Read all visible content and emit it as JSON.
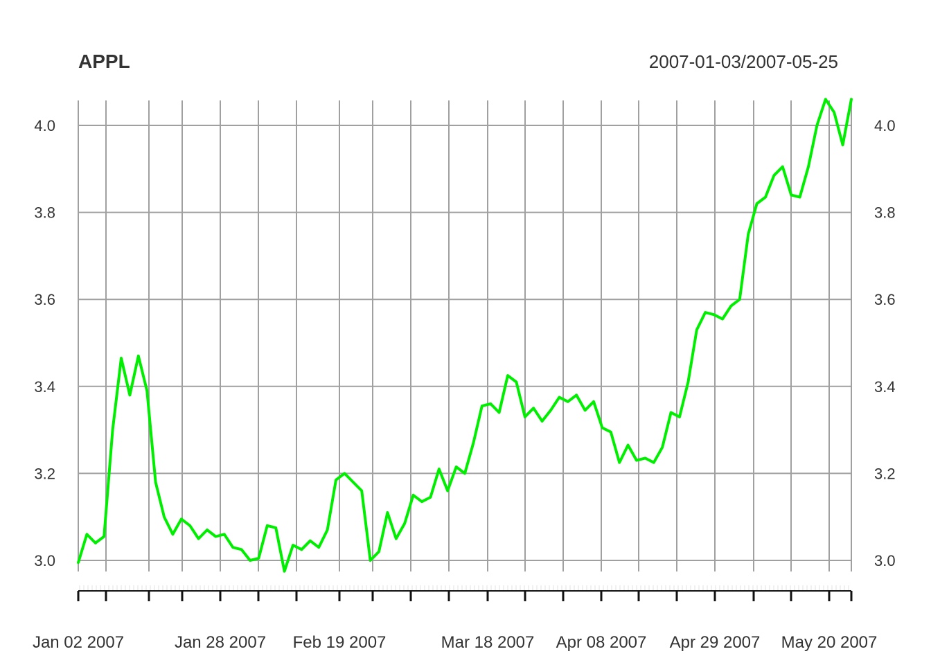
{
  "chart_data": {
    "type": "line",
    "title": "APPL",
    "date_range_label": "2007-01-03/2007-05-25",
    "xlabel": "",
    "ylabel": "",
    "ylim": [
      3.0,
      4.0
    ],
    "y_ticks": [
      "3.0",
      "3.2",
      "3.4",
      "3.6",
      "3.8",
      "4.0"
    ],
    "x_tick_labels": [
      "Jan 02 2007",
      "Jan 28 2007",
      "Feb 19 2007",
      "Mar 18 2007",
      "Apr 08 2007",
      "Apr 29 2007",
      "May 20 2007"
    ],
    "grid": true,
    "line_color": "#00ee00",
    "grid_color": "#a0a0a0",
    "series": [
      {
        "values": [
          2.995,
          3.06,
          3.04,
          3.055,
          3.3,
          3.465,
          3.38,
          3.47,
          3.39,
          3.18,
          3.1,
          3.06,
          3.095,
          3.08,
          3.05,
          3.07,
          3.055,
          3.06,
          3.03,
          3.025,
          3.0,
          3.005,
          3.08,
          3.075,
          2.975,
          3.035,
          3.025,
          3.045,
          3.03,
          3.07,
          3.185,
          3.2,
          3.18,
          3.16,
          3.0,
          3.02,
          3.11,
          3.05,
          3.085,
          3.15,
          3.135,
          3.145,
          3.21,
          3.16,
          3.215,
          3.2,
          3.27,
          3.355,
          3.36,
          3.34,
          3.425,
          3.41,
          3.33,
          3.35,
          3.32,
          3.345,
          3.375,
          3.365,
          3.38,
          3.345,
          3.365,
          3.305,
          3.295,
          3.225,
          3.265,
          3.23,
          3.235,
          3.225,
          3.26,
          3.34,
          3.33,
          3.41,
          3.53,
          3.57,
          3.565,
          3.555,
          3.585,
          3.6,
          3.75,
          3.82,
          3.835,
          3.885,
          3.905,
          3.84,
          3.835,
          3.905,
          4.0,
          4.06,
          4.03,
          3.955,
          4.06
        ]
      }
    ]
  }
}
